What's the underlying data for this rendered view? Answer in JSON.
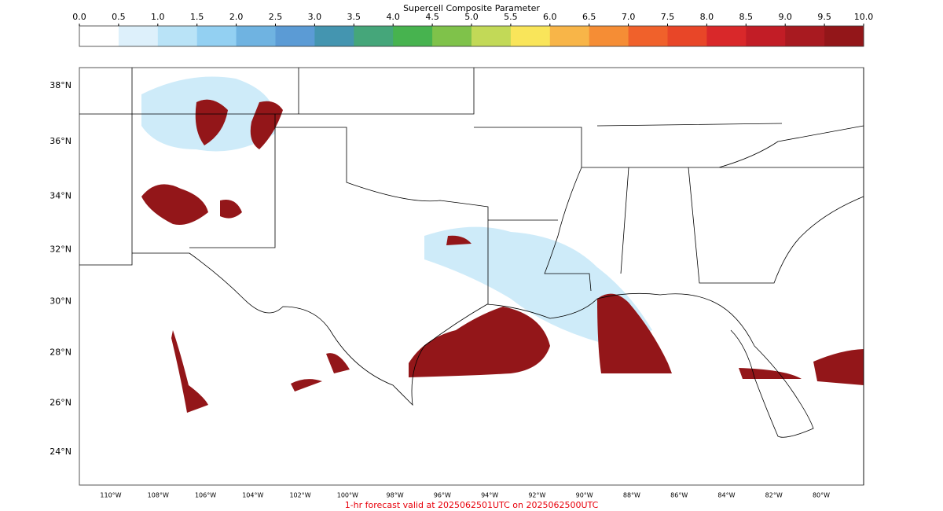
{
  "colorbar": {
    "title": "Supercell Composite Parameter",
    "ticks": [
      {
        "value": 0,
        "label": "0.0"
      },
      {
        "value": 0.5,
        "label": "0.5"
      },
      {
        "value": 1,
        "label": "1.0"
      },
      {
        "value": 1.5,
        "label": "1.5"
      },
      {
        "value": 2,
        "label": "2.0"
      },
      {
        "value": 2.5,
        "label": "2.5"
      },
      {
        "value": 3,
        "label": "3.0"
      },
      {
        "value": 3.5,
        "label": "3.5"
      },
      {
        "value": 4,
        "label": "4.0"
      },
      {
        "value": 4.5,
        "label": "4.5"
      },
      {
        "value": 5,
        "label": "5.0"
      },
      {
        "value": 5.5,
        "label": "5.5"
      },
      {
        "value": 6,
        "label": "6.0"
      },
      {
        "value": 6.5,
        "label": "6.5"
      },
      {
        "value": 7,
        "label": "7.0"
      },
      {
        "value": 7.5,
        "label": "7.5"
      },
      {
        "value": 8,
        "label": "8.0"
      },
      {
        "value": 8.5,
        "label": "8.5"
      },
      {
        "value": 9,
        "label": "9.0"
      },
      {
        "value": 9.5,
        "label": "9.5"
      },
      {
        "value": 10,
        "label": "10.0"
      }
    ],
    "colors": [
      "#ffffff",
      "#ddf0fb",
      "#b9e3f7",
      "#93d0f2",
      "#6fb3e1",
      "#5b9bd5",
      "#4495b0",
      "#45a67a",
      "#47b34f",
      "#7fc24a",
      "#c2d957",
      "#f9e55a",
      "#f8b548",
      "#f58d35",
      "#f0612b",
      "#e84628",
      "#d9282a",
      "#c21d26",
      "#a81a20",
      "#931619"
    ]
  },
  "map": {
    "lat_labels": [
      {
        "value": 38,
        "label": "38°N"
      },
      {
        "value": 36,
        "label": "36°N"
      },
      {
        "value": 34,
        "label": "34°N"
      },
      {
        "value": 32,
        "label": "32°N"
      },
      {
        "value": 30,
        "label": "30°N"
      },
      {
        "value": 28,
        "label": "28°N"
      },
      {
        "value": 26,
        "label": "26°N"
      },
      {
        "value": 24,
        "label": "24°N"
      }
    ],
    "lon_labels": [
      {
        "value": -110,
        "label": "110°W"
      },
      {
        "value": -108,
        "label": "108°W"
      },
      {
        "value": -106,
        "label": "106°W"
      },
      {
        "value": -104,
        "label": "104°W"
      },
      {
        "value": -102,
        "label": "102°W"
      },
      {
        "value": -100,
        "label": "100°W"
      },
      {
        "value": -98,
        "label": "98°W"
      },
      {
        "value": -96,
        "label": "96°W"
      },
      {
        "value": -94,
        "label": "94°W"
      },
      {
        "value": -92,
        "label": "92°W"
      },
      {
        "value": -90,
        "label": "90°W"
      },
      {
        "value": -88,
        "label": "88°W"
      },
      {
        "value": -86,
        "label": "86°W"
      },
      {
        "value": -84,
        "label": "84°W"
      },
      {
        "value": -82,
        "label": "82°W"
      },
      {
        "value": -80,
        "label": "80°W"
      }
    ]
  },
  "footer": "1-hr forecast valid at 2025062501UTC on 2025062500UTC"
}
